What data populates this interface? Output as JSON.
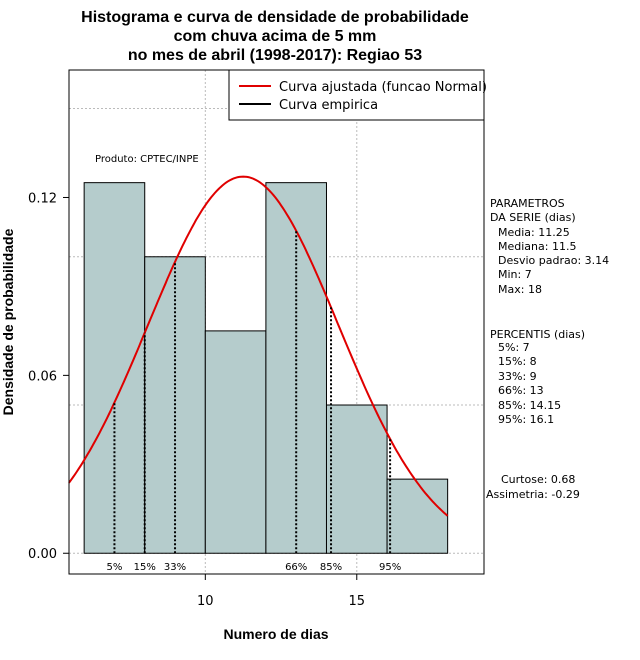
{
  "chart_data": {
    "type": "histogram",
    "title_lines": [
      "Histograma e curva de densidade de probabilidade",
      "com chuva acima de 5 mm",
      "no mes de abril (1998-2017): Regiao 53"
    ],
    "xlabel": "Numero de dias",
    "ylabel": "Densidade de probabilidade",
    "xlim": [
      5.5,
      19.2
    ],
    "ylim": [
      -0.007,
      0.163
    ],
    "x_ticks": [
      10,
      15
    ],
    "y_ticks": [
      0.0,
      0.06,
      0.12
    ],
    "y_tick_labels": [
      "0.00",
      "0.06",
      "0.12"
    ],
    "grid": true,
    "bins": [
      {
        "x0": 6,
        "x1": 8,
        "density": 0.125
      },
      {
        "x0": 8,
        "x1": 10,
        "density": 0.1
      },
      {
        "x0": 10,
        "x1": 12,
        "density": 0.075
      },
      {
        "x0": 12,
        "x1": 14,
        "density": 0.125
      },
      {
        "x0": 14,
        "x1": 16,
        "density": 0.05
      },
      {
        "x0": 16,
        "x1": 18,
        "density": 0.025
      }
    ],
    "normal_curve": {
      "mean": 11.25,
      "sd": 3.14,
      "x_range": [
        5.5,
        18
      ]
    },
    "percentile_lines": [
      {
        "label": "5%",
        "x": 7
      },
      {
        "label": "15%",
        "x": 8
      },
      {
        "label": "33%",
        "x": 9
      },
      {
        "label": "66%",
        "x": 13
      },
      {
        "label": "85%",
        "x": 14.15
      },
      {
        "label": "95%",
        "x": 16.1
      }
    ],
    "legend": {
      "position": "top-right",
      "items": [
        {
          "label": "Curva ajustada (funcao Normal)",
          "color": "#e00000"
        },
        {
          "label": "Curva empirica",
          "color": "#000000"
        }
      ]
    },
    "annotation": "Produto: CPTEC/INPE",
    "colors": {
      "bar_fill": "#b5cccc",
      "curve": "#e00000",
      "grid": "#bbbbbb"
    }
  },
  "side_panel": {
    "param_title_1": "PARAMETROS",
    "param_title_2": "DA SERIE (dias)",
    "params": [
      "Media: 11.25",
      "Mediana: 11.5",
      "Desvio padrao: 3.14",
      "Min: 7",
      "Max: 18"
    ],
    "pct_title": "PERCENTIS (dias)",
    "pcts": [
      "5%: 7",
      "15%: 8",
      "33%: 9",
      "66%: 13",
      "85%: 14.15",
      "95%: 16.1"
    ],
    "curtose": "Curtose: 0.68",
    "assimetria": "Assimetria: -0.29"
  }
}
